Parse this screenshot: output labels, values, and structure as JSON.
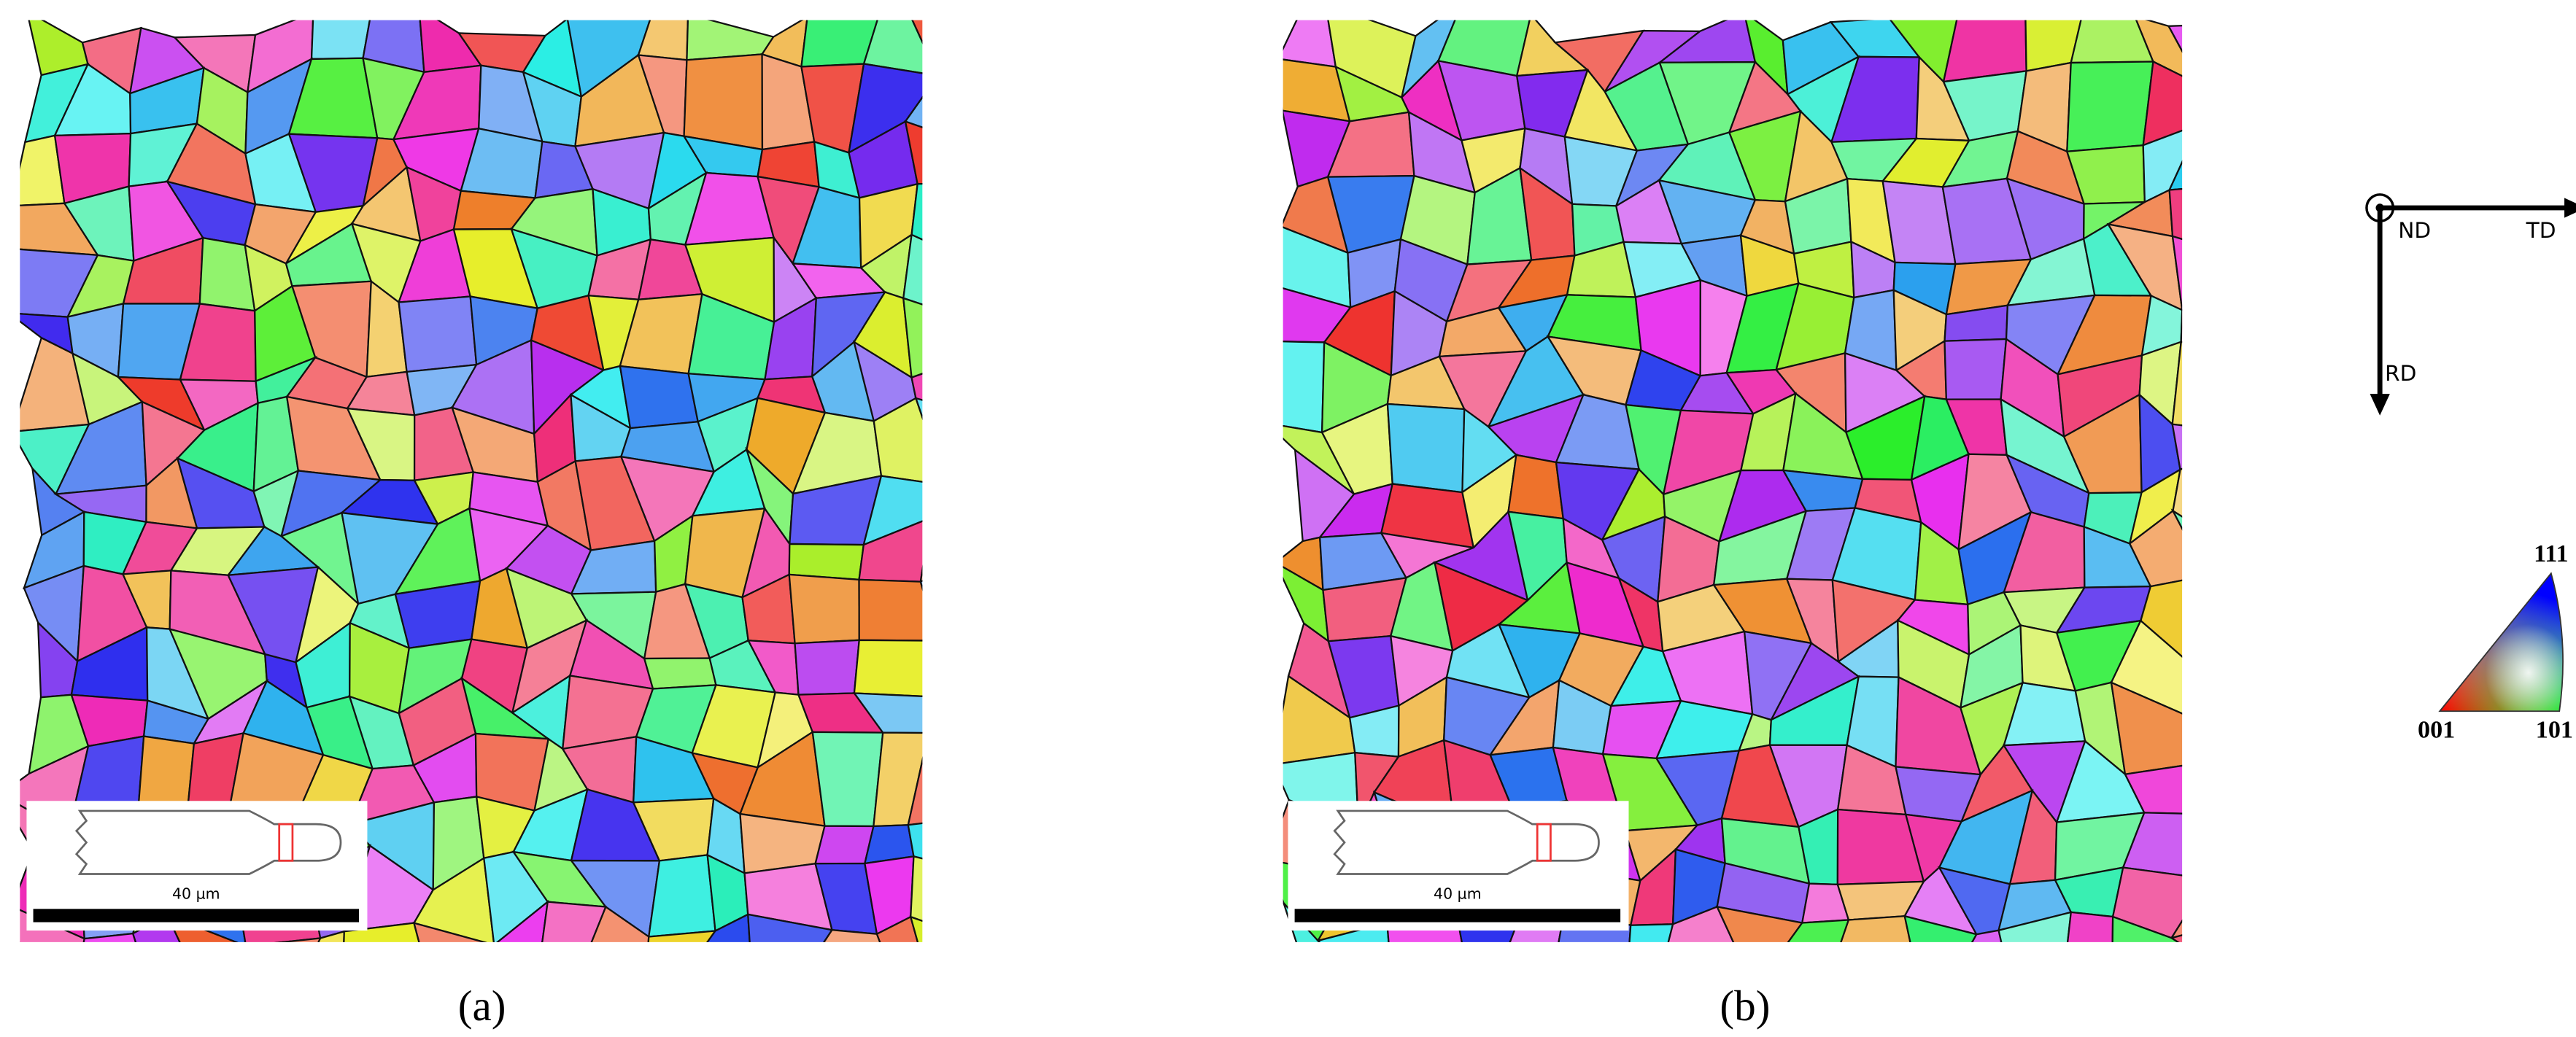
{
  "figure": {
    "panels": [
      {
        "label": "(a)",
        "scale_bar": "40 µm"
      },
      {
        "label": "(b)",
        "scale_bar": "40 µm"
      }
    ],
    "axes": {
      "normal": "ND",
      "horizontal": "TD",
      "vertical": "RD"
    },
    "ipf_key": {
      "top": "111",
      "left": "001",
      "right": "101"
    }
  }
}
